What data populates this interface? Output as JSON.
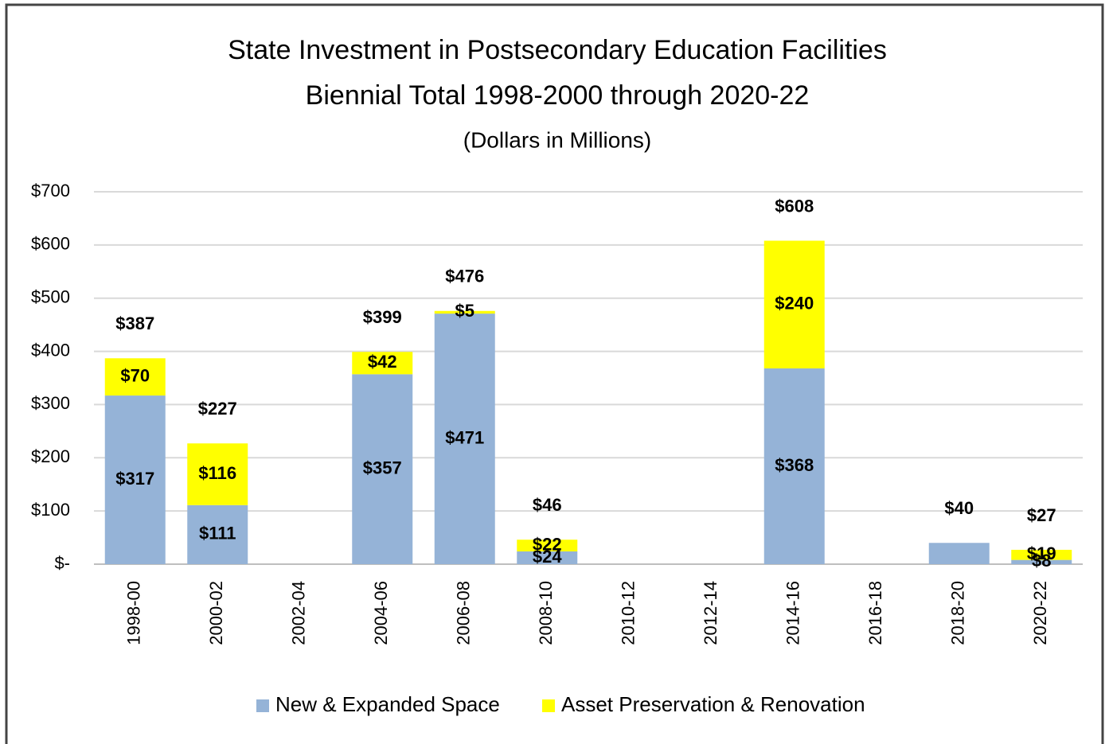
{
  "chart_data": {
    "type": "stacked-bar",
    "title": "State Investment in Postsecondary Education Facilities",
    "subtitle": "Biennial Total 1998-2000 through 2020-22",
    "unit_note": "(Dollars in Millions)",
    "categories": [
      "1998-00",
      "2000-02",
      "2002-04",
      "2004-06",
      "2006-08",
      "2008-10",
      "2010-12",
      "2012-14",
      "2014-16",
      "2016-18",
      "2018-20",
      "2020-22"
    ],
    "series": [
      {
        "name": "New & Expanded Space",
        "color": "#95b3d7",
        "values": [
          317,
          111,
          null,
          357,
          471,
          24,
          null,
          null,
          368,
          null,
          40,
          8
        ],
        "value_labels": [
          "$317",
          "$111",
          null,
          "$357",
          "$471",
          "$24",
          null,
          null,
          "$368",
          null,
          null,
          "$8"
        ]
      },
      {
        "name": "Asset Preservation & Renovation",
        "color": "#ffff00",
        "values": [
          70,
          116,
          null,
          42,
          5,
          22,
          null,
          null,
          240,
          null,
          null,
          19
        ],
        "value_labels": [
          "$70",
          "$116",
          null,
          "$42",
          "$5",
          "$22",
          null,
          null,
          "$240",
          null,
          null,
          "$19"
        ]
      }
    ],
    "totals": [
      387,
      227,
      null,
      399,
      476,
      46,
      null,
      null,
      608,
      null,
      40,
      27
    ],
    "totals_labels": [
      "$387",
      "$227",
      null,
      "$399",
      "$476",
      "$46",
      null,
      null,
      "$608",
      null,
      "$40",
      "$27"
    ],
    "ylim": [
      0,
      700
    ],
    "yticks": [
      {
        "value": 0,
        "label": "$-"
      },
      {
        "value": 100,
        "label": "$100"
      },
      {
        "value": 200,
        "label": "$200"
      },
      {
        "value": 300,
        "label": "$300"
      },
      {
        "value": 400,
        "label": "$400"
      },
      {
        "value": 500,
        "label": "$500"
      },
      {
        "value": 600,
        "label": "$600"
      },
      {
        "value": 700,
        "label": "$700"
      }
    ],
    "grid": true,
    "legend": "bottom"
  }
}
